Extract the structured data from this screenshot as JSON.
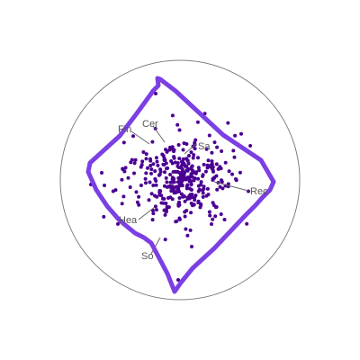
{
  "diagram": {
    "boundary_color": "#808080",
    "stroke_color": "#7b3fe4",
    "dot_color": "#4b0092",
    "label_line_color": "#666666",
    "labels": [
      "Fin",
      "Cer",
      "Sa",
      "Rec",
      "Hea",
      "So"
    ]
  }
}
